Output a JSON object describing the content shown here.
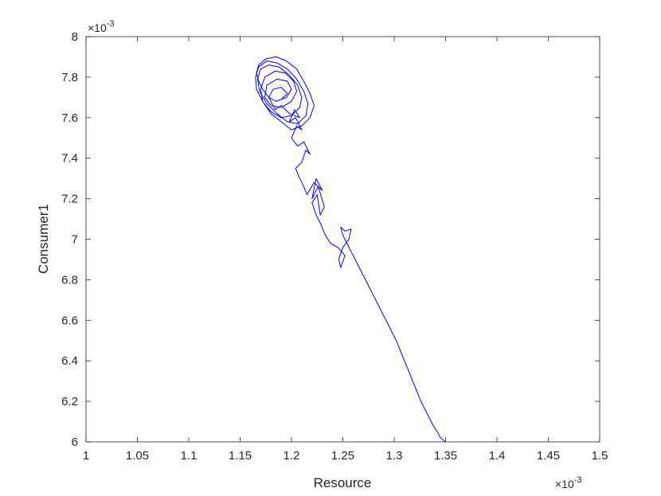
{
  "chart_data": {
    "type": "line",
    "xlabel": "Resource",
    "ylabel": "Consumer1",
    "x_multiplier_label": "×10",
    "x_multiplier_exp": "-3",
    "y_multiplier_label": "×10",
    "y_multiplier_exp": "-3",
    "xlim": [
      1.0,
      1.5
    ],
    "ylim": [
      6.0,
      8.0
    ],
    "x_ticks": [
      1,
      1.05,
      1.1,
      1.15,
      1.2,
      1.25,
      1.3,
      1.35,
      1.4,
      1.45,
      1.5
    ],
    "x_tick_labels": [
      "1",
      "1.05",
      "1.1",
      "1.15",
      "1.2",
      "1.25",
      "1.3",
      "1.35",
      "1.4",
      "1.45",
      "1.5"
    ],
    "y_ticks": [
      6,
      6.2,
      6.4,
      6.6,
      6.8,
      7,
      7.2,
      7.4,
      7.6,
      7.8,
      8
    ],
    "y_tick_labels": [
      "6",
      "6.2",
      "6.4",
      "6.6",
      "6.8",
      "7",
      "7.2",
      "7.4",
      "7.6",
      "7.8",
      "8"
    ],
    "grid": false,
    "line_color": "#0000ff",
    "series": [
      {
        "x": [
          1.35,
          1.345,
          1.342,
          1.338,
          1.334,
          1.33,
          1.326,
          1.322,
          1.318,
          1.314,
          1.31,
          1.306,
          1.302,
          1.298,
          1.294,
          1.29,
          1.286,
          1.282,
          1.278,
          1.274,
          1.27,
          1.266,
          1.262,
          1.258,
          1.254,
          1.25,
          1.248,
          1.252,
          1.258,
          1.256,
          1.25,
          1.246,
          1.248,
          1.252,
          1.245,
          1.238,
          1.233,
          1.228,
          1.224,
          1.22,
          1.225,
          1.228,
          1.232,
          1.226,
          1.22,
          1.224,
          1.23,
          1.222,
          1.215,
          1.212,
          1.208,
          1.204,
          1.21,
          1.214,
          1.218,
          1.212,
          1.206,
          1.2,
          1.205,
          1.21,
          1.204,
          1.198,
          1.203,
          1.208,
          1.198,
          1.19,
          1.184,
          1.178,
          1.172,
          1.168,
          1.166,
          1.168,
          1.175,
          1.185,
          1.195,
          1.205,
          1.212,
          1.218,
          1.222,
          1.218,
          1.21,
          1.2,
          1.19,
          1.18,
          1.172,
          1.166,
          1.165,
          1.168,
          1.176,
          1.186,
          1.196,
          1.205,
          1.212,
          1.216,
          1.214,
          1.206,
          1.196,
          1.186,
          1.176,
          1.169,
          1.167,
          1.17,
          1.178,
          1.188,
          1.198,
          1.206,
          1.21,
          1.208,
          1.2,
          1.19,
          1.18,
          1.172,
          1.17,
          1.174,
          1.184,
          1.194,
          1.202,
          1.205,
          1.2,
          1.19,
          1.18,
          1.174,
          1.176,
          1.186,
          1.196,
          1.2,
          1.195,
          1.185,
          1.178,
          1.182,
          1.19,
          1.196,
          1.19
        ],
        "y": [
          6.0,
          6.02,
          6.05,
          6.08,
          6.12,
          6.16,
          6.2,
          6.25,
          6.3,
          6.35,
          6.4,
          6.45,
          6.5,
          6.54,
          6.58,
          6.62,
          6.66,
          6.7,
          6.74,
          6.78,
          6.82,
          6.86,
          6.9,
          6.94,
          6.98,
          7.02,
          7.06,
          7.04,
          7.05,
          7.0,
          6.96,
          6.9,
          6.86,
          6.92,
          6.96,
          6.98,
          7.02,
          7.08,
          7.12,
          7.18,
          7.22,
          7.12,
          7.16,
          7.26,
          7.2,
          7.3,
          7.24,
          7.28,
          7.22,
          7.26,
          7.3,
          7.35,
          7.38,
          7.44,
          7.42,
          7.48,
          7.46,
          7.5,
          7.56,
          7.54,
          7.6,
          7.58,
          7.64,
          7.6,
          7.62,
          7.66,
          7.64,
          7.7,
          7.74,
          7.78,
          7.82,
          7.86,
          7.89,
          7.9,
          7.88,
          7.84,
          7.78,
          7.72,
          7.66,
          7.6,
          7.56,
          7.54,
          7.58,
          7.62,
          7.68,
          7.74,
          7.8,
          7.85,
          7.88,
          7.87,
          7.84,
          7.79,
          7.73,
          7.67,
          7.61,
          7.57,
          7.58,
          7.62,
          7.67,
          7.73,
          7.79,
          7.84,
          7.86,
          7.85,
          7.81,
          7.76,
          7.7,
          7.65,
          7.61,
          7.6,
          7.63,
          7.68,
          7.74,
          7.8,
          7.83,
          7.82,
          7.78,
          7.73,
          7.68,
          7.65,
          7.66,
          7.7,
          7.76,
          7.79,
          7.78,
          7.74,
          7.7,
          7.68,
          7.7,
          7.74,
          7.75,
          7.72,
          7.69
        ]
      }
    ]
  }
}
